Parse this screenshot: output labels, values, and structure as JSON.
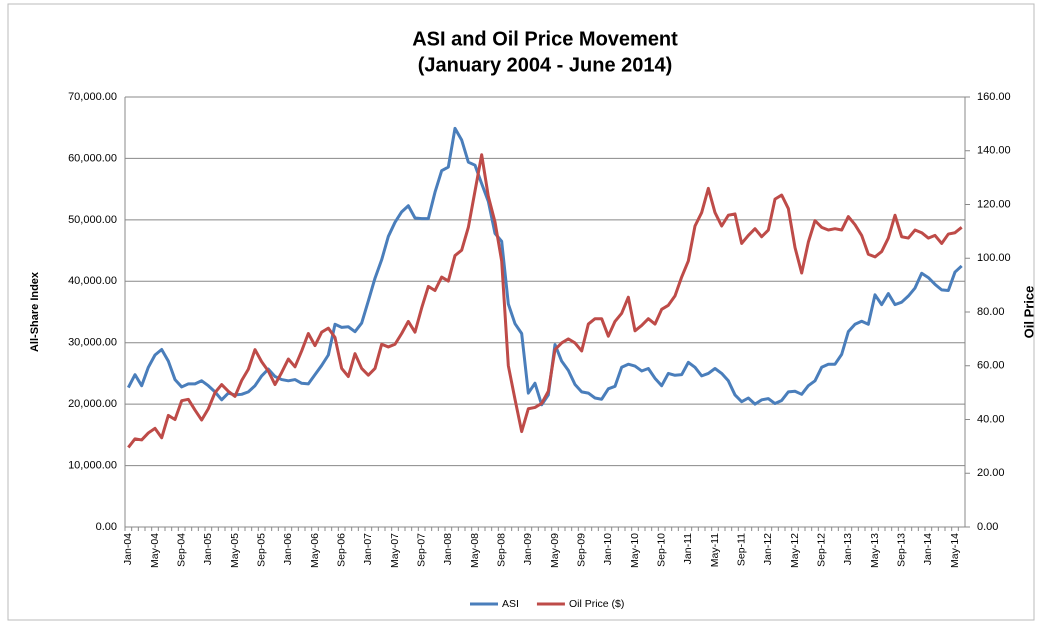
{
  "chart_data": {
    "type": "line",
    "title": "ASI and Oil Price Movement",
    "subtitle": "(January 2004 - June 2014)",
    "y_label": "All-Share Index",
    "y2_label": "Oil Price",
    "categories": [
      "Jan-04",
      null,
      null,
      null,
      "May-04",
      null,
      null,
      null,
      "Sep-04",
      null,
      null,
      null,
      "Jan-05",
      null,
      null,
      null,
      "May-05",
      null,
      null,
      null,
      "Sep-05",
      null,
      null,
      null,
      "Jan-06",
      null,
      null,
      null,
      "May-06",
      null,
      null,
      null,
      "Sep-06",
      null,
      null,
      null,
      "Jan-07",
      null,
      null,
      null,
      "May-07",
      null,
      null,
      null,
      "Sep-07",
      null,
      null,
      null,
      "Jan-08",
      null,
      null,
      null,
      "May-08",
      null,
      null,
      null,
      "Sep-08",
      null,
      null,
      null,
      "Jan-09",
      null,
      null,
      null,
      "May-09",
      null,
      null,
      null,
      "Sep-09",
      null,
      null,
      null,
      "Jan-10",
      null,
      null,
      null,
      "May-10",
      null,
      null,
      null,
      "Sep-10",
      null,
      null,
      null,
      "Jan-11",
      null,
      null,
      null,
      "May-11",
      null,
      null,
      null,
      "Sep-11",
      null,
      null,
      null,
      "Jan-12",
      null,
      null,
      null,
      "May-12",
      null,
      null,
      null,
      "Sep-12",
      null,
      null,
      null,
      "Jan-13",
      null,
      null,
      null,
      "May-13",
      null,
      null,
      null,
      "Sep-13",
      null,
      null,
      null,
      "Jan-14",
      null,
      null,
      null,
      "May-14",
      null
    ],
    "series": [
      {
        "name": "ASI",
        "color": "#4a7ebb",
        "values": [
          22700,
          24800,
          23000,
          26000,
          28000,
          28900,
          27000,
          24000,
          22800,
          23300,
          23300,
          23800,
          23000,
          22000,
          20700,
          21800,
          21500,
          21600,
          22000,
          23000,
          24600,
          25700,
          24500,
          24000,
          23800,
          24000,
          23400,
          23300,
          24800,
          26300,
          28000,
          33000,
          32500,
          32600,
          31800,
          33200,
          36800,
          40500,
          43500,
          47300,
          49600,
          51300,
          52300,
          50300,
          50200,
          50200,
          54500,
          58000,
          58600,
          64900,
          63000,
          59400,
          58900,
          55900,
          53000,
          47800,
          46500,
          36300,
          33100,
          31500,
          21800,
          23400,
          19900,
          21500,
          29700,
          27000,
          25500,
          23200,
          22000,
          21800,
          21000,
          20800,
          22500,
          22900,
          26000,
          26500,
          26200,
          25400,
          25800,
          24200,
          23000,
          25000,
          24700,
          24800,
          26800,
          26000,
          24600,
          25000,
          25800,
          25000,
          23800,
          21500,
          20400,
          21000,
          20000,
          20700,
          20900,
          20100,
          20600,
          22000,
          22100,
          21600,
          23000,
          23800,
          26000,
          26500,
          26500,
          28100,
          31800,
          33000,
          33500,
          33000,
          37800,
          36200,
          38000,
          36200,
          36600,
          37600,
          38900,
          41300,
          40600,
          39500,
          38600,
          38500,
          41500,
          42500
        ]
      },
      {
        "name": "Oil Price ($)",
        "color": "#be4b48",
        "axis": "y2",
        "values": [
          29.6,
          32.8,
          32.4,
          35,
          36.7,
          33.2,
          41.5,
          40,
          47,
          47.5,
          43.5,
          39.8,
          44,
          50,
          53,
          50.5,
          48.6,
          54.5,
          58.7,
          66,
          61.5,
          58,
          53,
          57.5,
          62.5,
          59.6,
          65.5,
          72,
          67.5,
          72.5,
          74,
          70.5,
          59,
          56,
          64.5,
          59,
          56.5,
          59,
          68,
          67,
          68,
          72,
          76.5,
          72.5,
          81.5,
          89.5,
          88,
          93,
          91.5,
          101,
          103,
          111.5,
          125,
          138.5,
          123,
          113.5,
          99,
          60,
          47.5,
          35.5,
          44,
          44.5,
          46,
          50.5,
          66,
          68.5,
          70,
          68.5,
          65.5,
          75.5,
          77.5,
          77.5,
          71,
          76.5,
          79.5,
          85.5,
          73,
          75,
          77.5,
          75.5,
          81,
          82.5,
          86,
          93,
          99,
          112,
          117,
          126,
          117,
          112,
          116,
          116.5,
          105.5,
          108.5,
          111,
          108,
          110.5,
          122,
          123.5,
          118.5,
          104,
          94.5,
          106,
          114,
          111.5,
          110.5,
          111,
          110.5,
          115.5,
          112.5,
          108.5,
          101.5,
          100.5,
          102.5,
          107.5,
          116,
          108,
          107.5,
          110.5,
          109.5,
          107.5,
          108.5,
          105.5,
          109,
          109.5,
          111.5
        ]
      }
    ],
    "ylim": [
      0,
      70000
    ],
    "yticks": [
      {
        "value": 0,
        "label": "0.00"
      },
      {
        "value": 10000,
        "label": "10,000.00"
      },
      {
        "value": 20000,
        "label": "20,000.00"
      },
      {
        "value": 30000,
        "label": "30,000.00"
      },
      {
        "value": 40000,
        "label": "40,000.00"
      },
      {
        "value": 50000,
        "label": "50,000.00"
      },
      {
        "value": 60000,
        "label": "60,000.00"
      },
      {
        "value": 70000,
        "label": "70,000.00"
      }
    ],
    "y2lim": [
      0,
      160
    ],
    "y2ticks": [
      {
        "value": 0,
        "label": "0.00"
      },
      {
        "value": 20,
        "label": "20.00"
      },
      {
        "value": 40,
        "label": "40.00"
      },
      {
        "value": 60,
        "label": "60.00"
      },
      {
        "value": 80,
        "label": "80.00"
      },
      {
        "value": 100,
        "label": "100.00"
      },
      {
        "value": 120,
        "label": "120.00"
      },
      {
        "value": 140,
        "label": "140.00"
      },
      {
        "value": 160,
        "label": "160.00"
      }
    ],
    "grid": true,
    "legend": "bottom"
  }
}
